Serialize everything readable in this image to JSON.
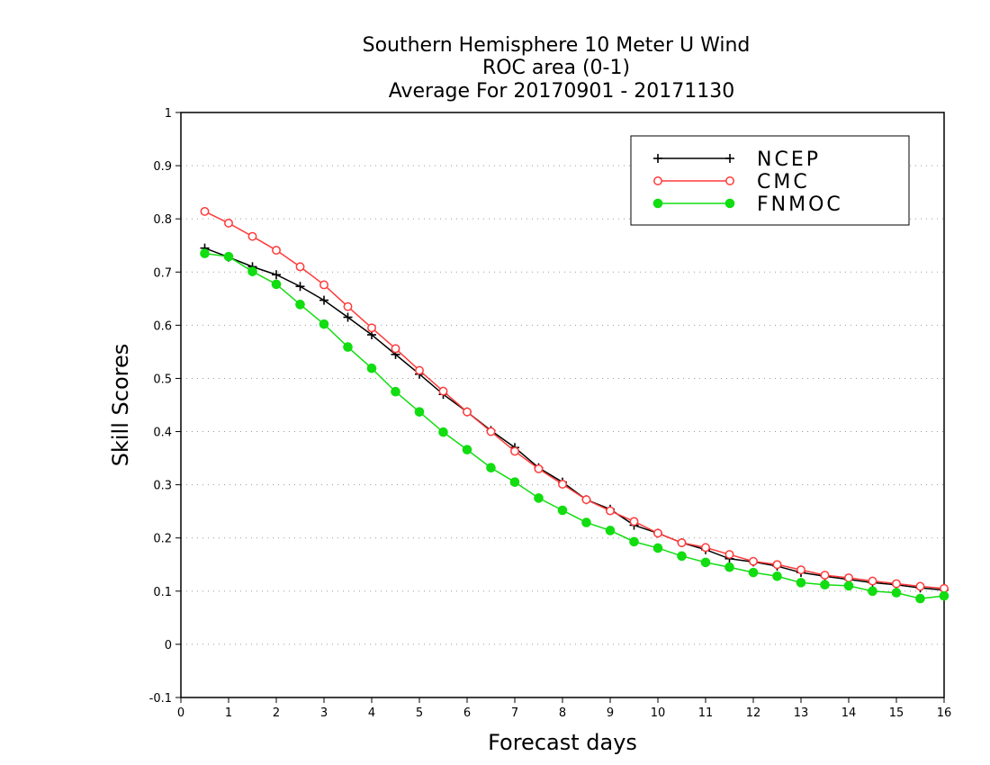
{
  "chart_data": {
    "type": "line",
    "title_lines": [
      "Southern Hemisphere 10 Meter U Wind",
      "ROC area (0-1)",
      "Average For 20170901 - 20171130"
    ],
    "xlabel": "Forecast days",
    "ylabel": "Skill Scores",
    "xlim": [
      0,
      16
    ],
    "ylim": [
      -0.1,
      1
    ],
    "xticks": [
      "0",
      "1",
      "2",
      "3",
      "4",
      "5",
      "6",
      "7",
      "8",
      "9",
      "10",
      "11",
      "12",
      "13",
      "14",
      "15",
      "16"
    ],
    "yticks": [
      "-0.1",
      "0",
      "0.1",
      "0.2",
      "0.3",
      "0.4",
      "0.5",
      "0.6",
      "0.7",
      "0.8",
      "0.9",
      "1"
    ],
    "grid": "horizontal dotted",
    "legend_position": "top-right",
    "x": [
      0.5,
      1,
      1.5,
      2,
      2.5,
      3,
      3.5,
      4,
      4.5,
      5,
      5.5,
      6,
      6.5,
      7,
      7.5,
      8,
      8.5,
      9,
      9.5,
      10,
      10.5,
      11,
      11.5,
      12,
      12.5,
      13,
      13.5,
      14,
      14.5,
      15,
      15.5,
      16
    ],
    "series": [
      {
        "name": "NCEP",
        "color": "#000000",
        "marker": "plus",
        "values": [
          0.745,
          0.728,
          0.71,
          0.695,
          0.673,
          0.647,
          0.615,
          0.582,
          0.545,
          0.508,
          0.47,
          0.437,
          0.402,
          0.37,
          0.332,
          0.305,
          0.272,
          0.254,
          0.224,
          0.209,
          0.191,
          0.178,
          0.161,
          0.155,
          0.147,
          0.135,
          0.128,
          0.122,
          0.116,
          0.112,
          0.106,
          0.102
        ]
      },
      {
        "name": "CMC",
        "color": "#ff3a3a",
        "marker": "open-circle",
        "values": [
          0.814,
          0.792,
          0.767,
          0.741,
          0.71,
          0.676,
          0.635,
          0.595,
          0.556,
          0.515,
          0.476,
          0.437,
          0.4,
          0.363,
          0.33,
          0.301,
          0.272,
          0.251,
          0.231,
          0.209,
          0.191,
          0.182,
          0.169,
          0.156,
          0.15,
          0.14,
          0.13,
          0.125,
          0.119,
          0.114,
          0.109,
          0.105
        ]
      },
      {
        "name": "FNMOC",
        "color": "#11dd11",
        "marker": "filled-circle",
        "values": [
          0.735,
          0.729,
          0.701,
          0.677,
          0.639,
          0.602,
          0.559,
          0.519,
          0.475,
          0.437,
          0.399,
          0.366,
          0.332,
          0.305,
          0.275,
          0.252,
          0.229,
          0.214,
          0.193,
          0.181,
          0.166,
          0.154,
          0.145,
          0.135,
          0.128,
          0.116,
          0.112,
          0.11,
          0.1,
          0.097,
          0.086,
          0.091
        ]
      }
    ]
  }
}
